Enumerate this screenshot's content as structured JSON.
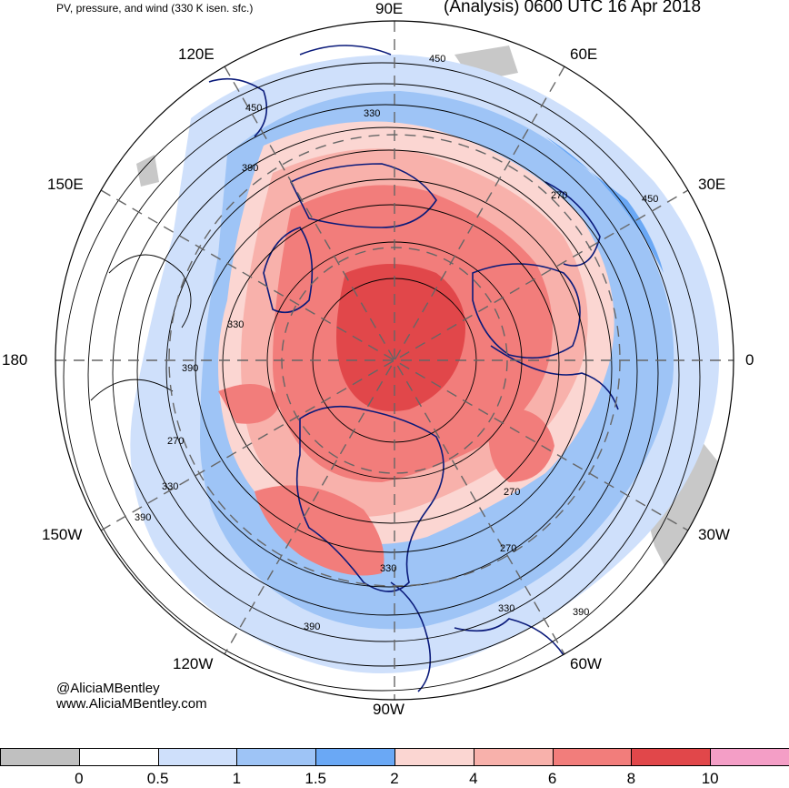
{
  "header": {
    "subtitle": "PV, pressure, and wind (330 K isen. sfc.)",
    "title": "(Analysis) 0600 UTC 16 Apr 2018"
  },
  "longitude_labels": {
    "e90": "90E",
    "e60": "60E",
    "e120": "120E",
    "e30": "30E",
    "e150": "150E",
    "zero": "0",
    "one_eighty": "180",
    "w30": "30W",
    "w150": "150W",
    "w60": "60W",
    "w120": "120W",
    "w90": "90W"
  },
  "pressure_contour_labels": [
    "450",
    "450",
    "330",
    "390",
    "330",
    "390",
    "270",
    "450",
    "270",
    "330",
    "390",
    "270",
    "270",
    "330",
    "330",
    "390",
    "390"
  ],
  "credits": {
    "handle": "@AliciaMBentley",
    "url": "www.AliciaMBentley.com"
  },
  "colorbar": {
    "colors": [
      "#c0c0c0",
      "#ffffff",
      "#cfe0fb",
      "#9ec4f6",
      "#6aa8f5",
      "#fbd6d2",
      "#f8b1ab",
      "#f27d7b",
      "#e1474a",
      "#f49ec6"
    ],
    "tick_labels": [
      "0",
      "0.5",
      "1",
      "1.5",
      "2",
      "4",
      "6",
      "8",
      "10"
    ]
  }
}
